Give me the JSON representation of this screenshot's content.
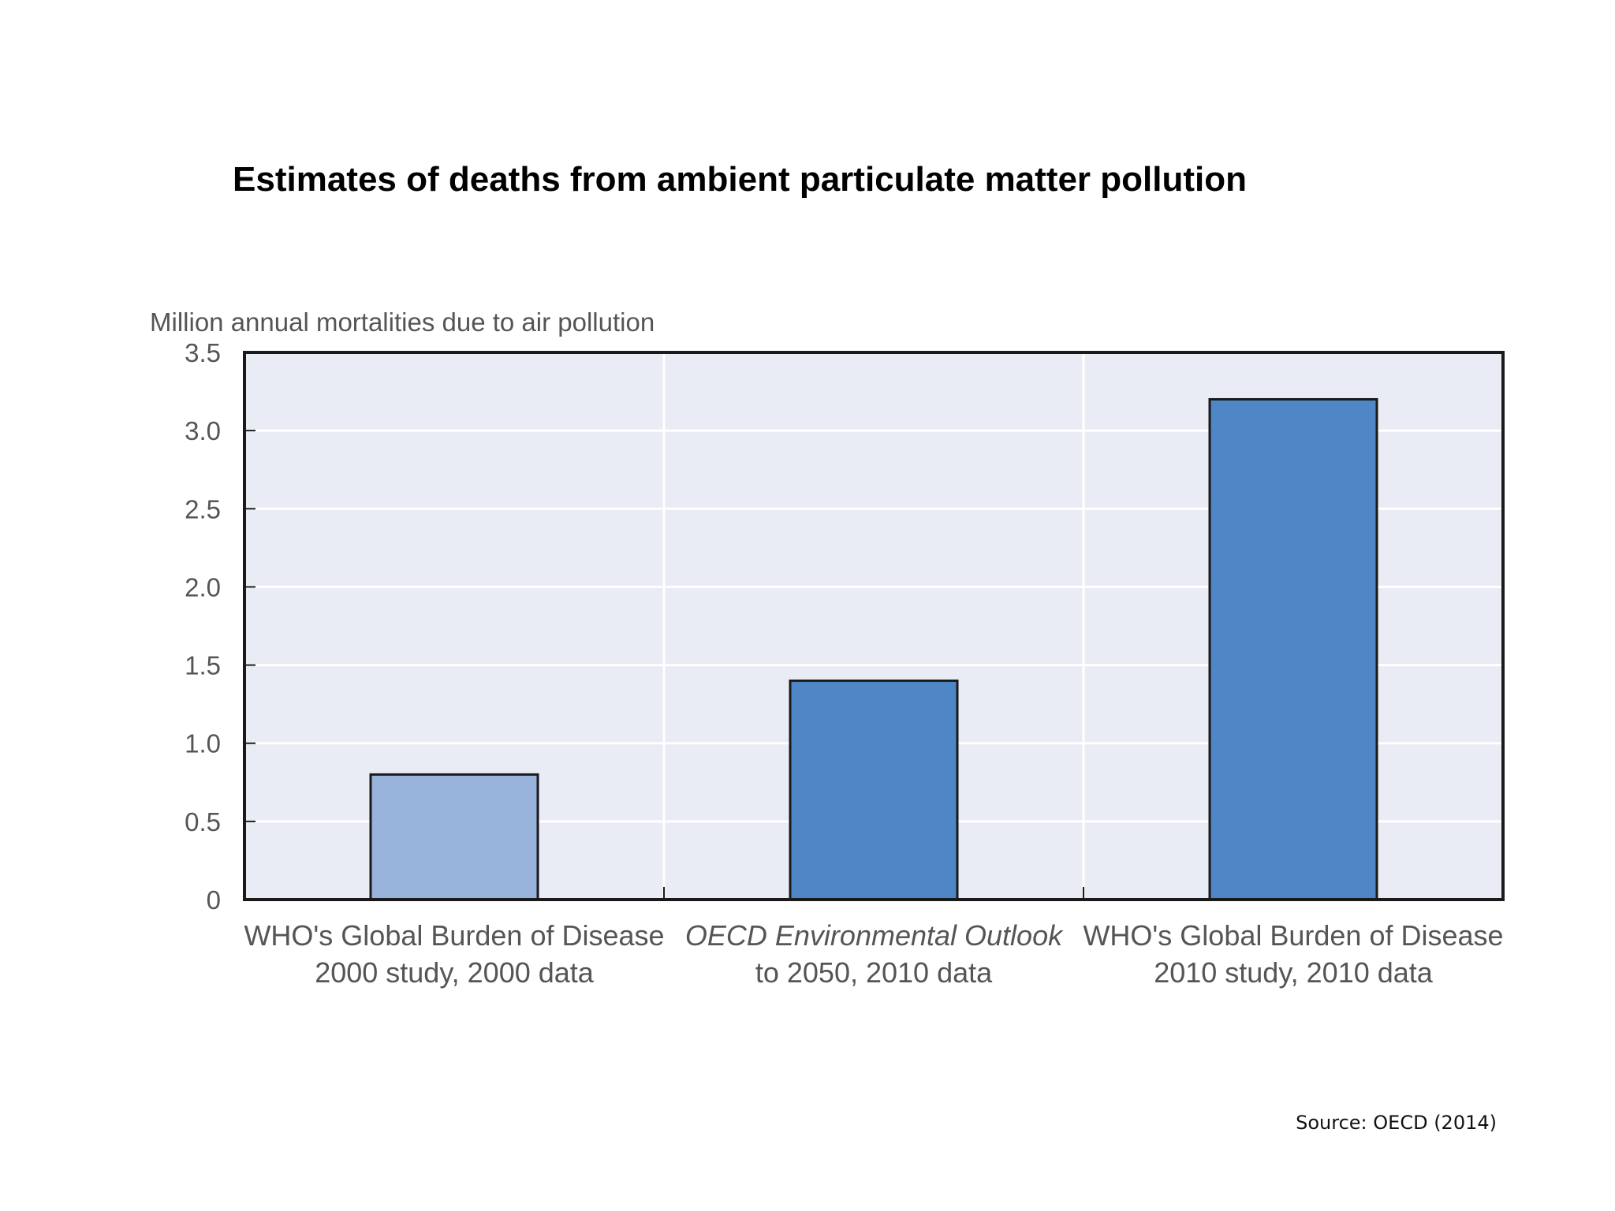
{
  "chart_data": {
    "type": "bar",
    "title": "Estimates of deaths from ambient particulate matter pollution",
    "ylabel": "Million annual mortalities due to air pollution",
    "xlabel": "",
    "ylim": [
      0,
      3.5
    ],
    "yticks": [
      "0",
      "0.5",
      "1.0",
      "1.5",
      "2.0",
      "2.5",
      "3.0",
      "3.5"
    ],
    "ytick_values": [
      0,
      0.5,
      1.0,
      1.5,
      2.0,
      2.5,
      3.0,
      3.5
    ],
    "grid": true,
    "categories": [
      {
        "line1": "WHO's Global Burden of Disease",
        "line2": "2000 study, 2000 data",
        "italic": false
      },
      {
        "line1": "OECD Environmental Outlook",
        "line2": "to 2050, 2010 data",
        "italic": true
      },
      {
        "line1": "WHO's Global Burden of Disease",
        "line2": "2010 study, 2010 data",
        "italic": false
      }
    ],
    "values": [
      0.8,
      1.4,
      3.2
    ],
    "bar_colors": [
      "#98b3dc",
      "#4e86c6",
      "#4e86c6"
    ]
  },
  "source": "Source: OECD (2014)",
  "colors": {
    "plot_background": "#e9ebf5",
    "gridline": "#ffffff",
    "axis": "#1a1a1a",
    "tick_label": "#555555"
  }
}
